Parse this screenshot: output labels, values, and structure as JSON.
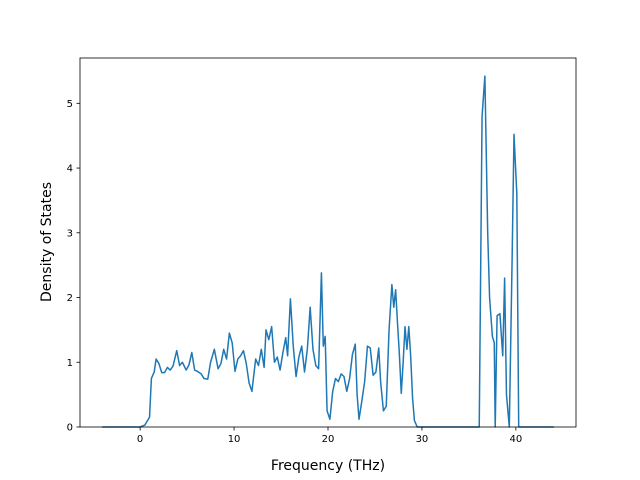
{
  "chart_data": {
    "type": "line",
    "title": "",
    "xlabel": "Frequency (THz)",
    "ylabel": "Density of States",
    "xlim": [
      -6.4,
      46.4
    ],
    "ylim": [
      0,
      5.7
    ],
    "x_ticks": [
      0,
      10,
      20,
      30,
      40
    ],
    "y_ticks": [
      0,
      1,
      2,
      3,
      4,
      5
    ],
    "grid": false,
    "legend": "none",
    "series": [
      {
        "color": "#1f77b4",
        "points": [
          [
            -4.0,
            0.0
          ],
          [
            0.0,
            0.0
          ],
          [
            0.5,
            0.03
          ],
          [
            1.0,
            0.15
          ],
          [
            1.2,
            0.75
          ],
          [
            1.5,
            0.85
          ],
          [
            1.7,
            1.05
          ],
          [
            2.0,
            0.98
          ],
          [
            2.3,
            0.84
          ],
          [
            2.6,
            0.84
          ],
          [
            2.9,
            0.92
          ],
          [
            3.2,
            0.88
          ],
          [
            3.5,
            0.94
          ],
          [
            3.9,
            1.18
          ],
          [
            4.2,
            0.95
          ],
          [
            4.5,
            1.0
          ],
          [
            4.9,
            0.88
          ],
          [
            5.2,
            0.96
          ],
          [
            5.5,
            1.15
          ],
          [
            5.8,
            0.88
          ],
          [
            6.1,
            0.86
          ],
          [
            6.5,
            0.82
          ],
          [
            6.8,
            0.75
          ],
          [
            7.2,
            0.74
          ],
          [
            7.5,
            1.0
          ],
          [
            7.9,
            1.2
          ],
          [
            8.3,
            0.9
          ],
          [
            8.6,
            0.98
          ],
          [
            8.9,
            1.2
          ],
          [
            9.2,
            1.05
          ],
          [
            9.5,
            1.45
          ],
          [
            9.8,
            1.3
          ],
          [
            10.1,
            0.86
          ],
          [
            10.4,
            1.05
          ],
          [
            10.7,
            1.1
          ],
          [
            11.0,
            1.18
          ],
          [
            11.3,
            0.98
          ],
          [
            11.6,
            0.68
          ],
          [
            11.9,
            0.55
          ],
          [
            12.3,
            1.05
          ],
          [
            12.6,
            0.95
          ],
          [
            12.9,
            1.2
          ],
          [
            13.2,
            0.92
          ],
          [
            13.4,
            1.5
          ],
          [
            13.7,
            1.35
          ],
          [
            14.0,
            1.55
          ],
          [
            14.3,
            1.0
          ],
          [
            14.6,
            1.08
          ],
          [
            14.9,
            0.88
          ],
          [
            15.2,
            1.15
          ],
          [
            15.5,
            1.38
          ],
          [
            15.7,
            1.1
          ],
          [
            16.0,
            1.98
          ],
          [
            16.3,
            1.25
          ],
          [
            16.6,
            0.78
          ],
          [
            16.9,
            1.08
          ],
          [
            17.2,
            1.25
          ],
          [
            17.5,
            0.85
          ],
          [
            17.8,
            1.2
          ],
          [
            18.1,
            1.85
          ],
          [
            18.4,
            1.2
          ],
          [
            18.7,
            0.95
          ],
          [
            19.0,
            0.9
          ],
          [
            19.3,
            2.38
          ],
          [
            19.5,
            1.25
          ],
          [
            19.7,
            1.4
          ],
          [
            19.9,
            0.25
          ],
          [
            20.2,
            0.12
          ],
          [
            20.5,
            0.55
          ],
          [
            20.8,
            0.75
          ],
          [
            21.1,
            0.7
          ],
          [
            21.4,
            0.82
          ],
          [
            21.7,
            0.78
          ],
          [
            22.0,
            0.55
          ],
          [
            22.3,
            0.75
          ],
          [
            22.6,
            1.12
          ],
          [
            22.9,
            1.28
          ],
          [
            23.1,
            0.5
          ],
          [
            23.3,
            0.12
          ],
          [
            23.6,
            0.4
          ],
          [
            23.9,
            0.7
          ],
          [
            24.2,
            1.25
          ],
          [
            24.5,
            1.22
          ],
          [
            24.8,
            0.8
          ],
          [
            25.1,
            0.85
          ],
          [
            25.4,
            1.22
          ],
          [
            25.6,
            0.7
          ],
          [
            25.9,
            0.25
          ],
          [
            26.2,
            0.32
          ],
          [
            26.5,
            1.5
          ],
          [
            26.8,
            2.2
          ],
          [
            27.0,
            1.85
          ],
          [
            27.2,
            2.12
          ],
          [
            27.4,
            1.6
          ],
          [
            27.6,
            1.12
          ],
          [
            27.8,
            0.52
          ],
          [
            28.0,
            1.0
          ],
          [
            28.2,
            1.55
          ],
          [
            28.4,
            1.2
          ],
          [
            28.6,
            1.55
          ],
          [
            28.8,
            1.1
          ],
          [
            29.0,
            0.45
          ],
          [
            29.2,
            0.1
          ],
          [
            29.5,
            0.0
          ],
          [
            36.1,
            0.0
          ],
          [
            36.4,
            4.8
          ],
          [
            36.7,
            5.42
          ],
          [
            37.0,
            3.0
          ],
          [
            37.2,
            2.0
          ],
          [
            37.5,
            1.4
          ],
          [
            37.7,
            1.3
          ],
          [
            37.8,
            0.0
          ],
          [
            38.0,
            1.72
          ],
          [
            38.3,
            1.75
          ],
          [
            38.6,
            1.1
          ],
          [
            38.8,
            2.3
          ],
          [
            39.0,
            0.5
          ],
          [
            39.3,
            0.0
          ],
          [
            39.6,
            2.6
          ],
          [
            39.8,
            4.52
          ],
          [
            40.1,
            3.6
          ],
          [
            40.3,
            0.0
          ],
          [
            44.0,
            0.0
          ]
        ]
      }
    ]
  }
}
